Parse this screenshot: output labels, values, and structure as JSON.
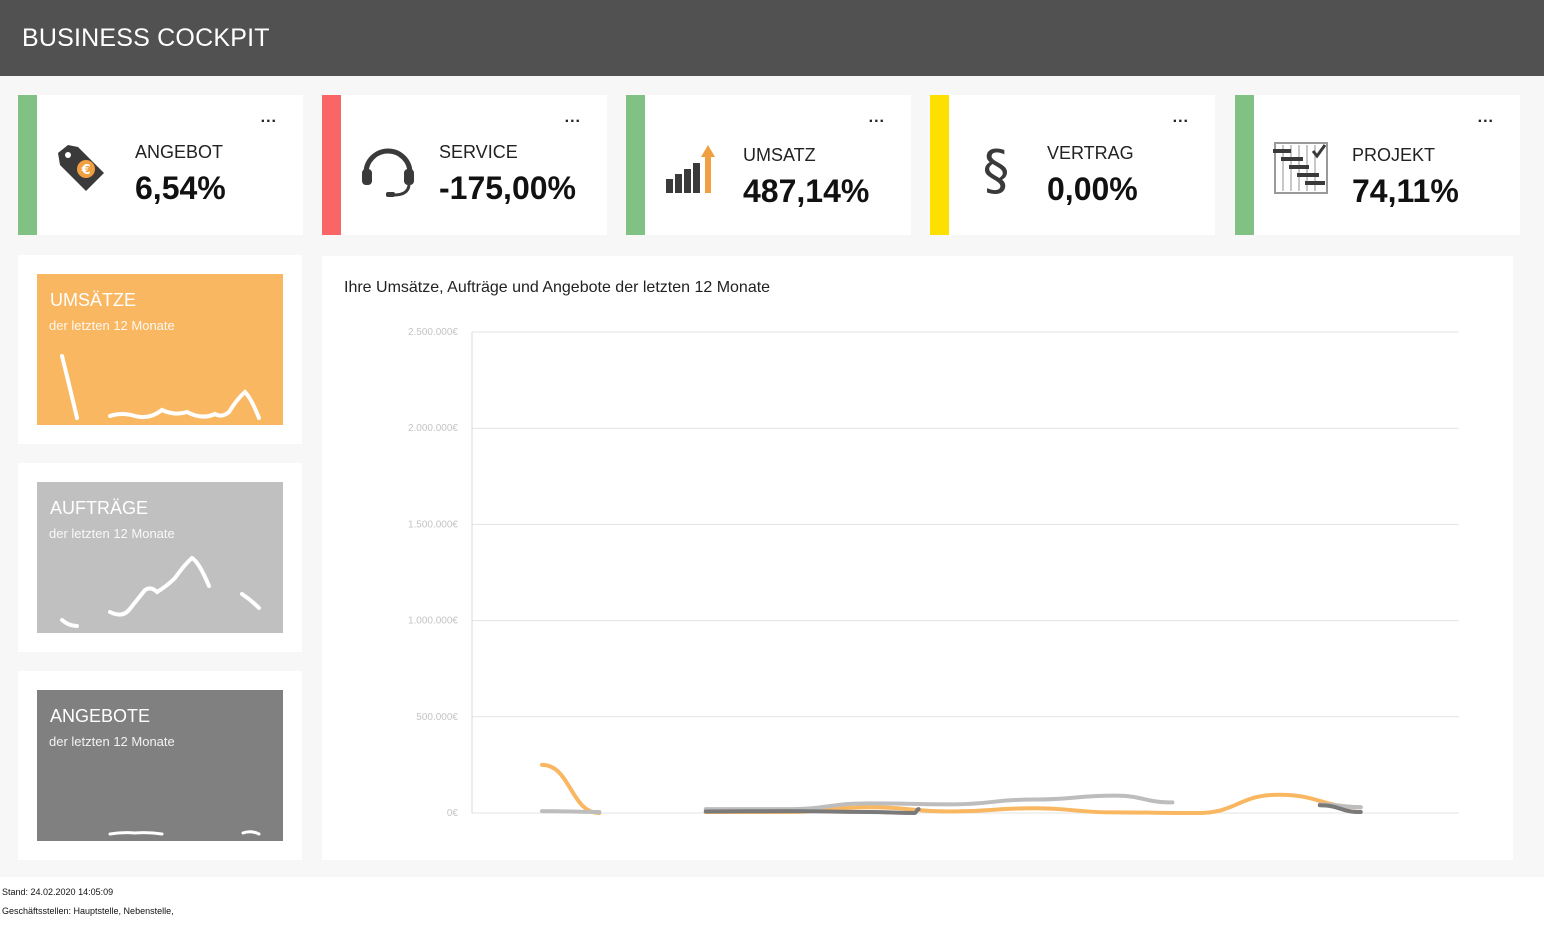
{
  "header": {
    "title": "BUSINESS COCKPIT"
  },
  "kpis": [
    {
      "label": "ANGEBOT",
      "value": "6,54%",
      "color": "#82c184",
      "icon": "price-tag-icon",
      "more": "..."
    },
    {
      "label": "SERVICE",
      "value": "-175,00%",
      "color": "#fa6565",
      "icon": "headset-icon",
      "more": "..."
    },
    {
      "label": "UMSATZ",
      "value": "487,14%",
      "color": "#82c184",
      "icon": "growth-chart-icon",
      "more": "..."
    },
    {
      "label": "VERTRAG",
      "value": "0,00%",
      "color": "#fde000",
      "icon": "paragraph-icon",
      "more": "..."
    },
    {
      "label": "PROJEKT",
      "value": "74,11%",
      "color": "#82c184",
      "icon": "gantt-icon",
      "more": "..."
    }
  ],
  "tiles": [
    {
      "title": "UMSÄTZE",
      "subtitle": "der letzten 12 Monate",
      "color": "#f9b762"
    },
    {
      "title": "AUFTRÄGE",
      "subtitle": "der letzten 12 Monate",
      "color": "#c0c0c0"
    },
    {
      "title": "ANGEBOTE",
      "subtitle": "der letzten 12 Monate",
      "color": "#808080"
    }
  ],
  "chart_data": {
    "type": "line",
    "title": "Ihre Umsätze, Aufträge und Angebote der letzten 12 Monate",
    "ylim": [
      0,
      2500000
    ],
    "yticks": [
      "0€",
      "500.000€",
      "1.000.000€",
      "1.500.000€",
      "2.000.000€",
      "2.500.000€"
    ],
    "grid": true,
    "series": [
      {
        "key": "umsaetze",
        "color": "#f9b762",
        "points": [
          [
            0,
            250000
          ],
          [
            0.7,
            0
          ],
          [
            null,
            null
          ],
          [
            2,
            5000
          ],
          [
            3,
            5000
          ],
          [
            4,
            30000
          ],
          [
            5,
            8000
          ],
          [
            6,
            25000
          ],
          [
            7,
            3000
          ],
          [
            8,
            0
          ],
          [
            9,
            95000
          ],
          [
            10,
            30000
          ]
        ]
      },
      {
        "key": "auftraege",
        "color": "#bdbdbd",
        "points": [
          [
            0,
            10000
          ],
          [
            0.7,
            5000
          ],
          [
            null,
            null
          ],
          [
            2,
            20000
          ],
          [
            3,
            20000
          ],
          [
            4,
            50000
          ],
          [
            5,
            45000
          ],
          [
            6,
            70000
          ],
          [
            7,
            90000
          ],
          [
            7.7,
            55000
          ],
          [
            null,
            null
          ],
          [
            9.5,
            45000
          ],
          [
            10,
            30000
          ]
        ]
      },
      {
        "key": "angebote",
        "color": "#7a7a7a",
        "points": [
          [
            2,
            8000
          ],
          [
            3,
            10000
          ],
          [
            4,
            5000
          ],
          [
            4.55,
            0
          ],
          [
            4.6,
            20000
          ],
          [
            null,
            null
          ],
          [
            9.5,
            40000
          ],
          [
            10,
            5000
          ]
        ]
      }
    ]
  },
  "footer": {
    "stand": "Stand: 24.02.2020 14:05:09",
    "stellen": "Geschäftsstellen: Hauptstelle, Nebenstelle,"
  }
}
